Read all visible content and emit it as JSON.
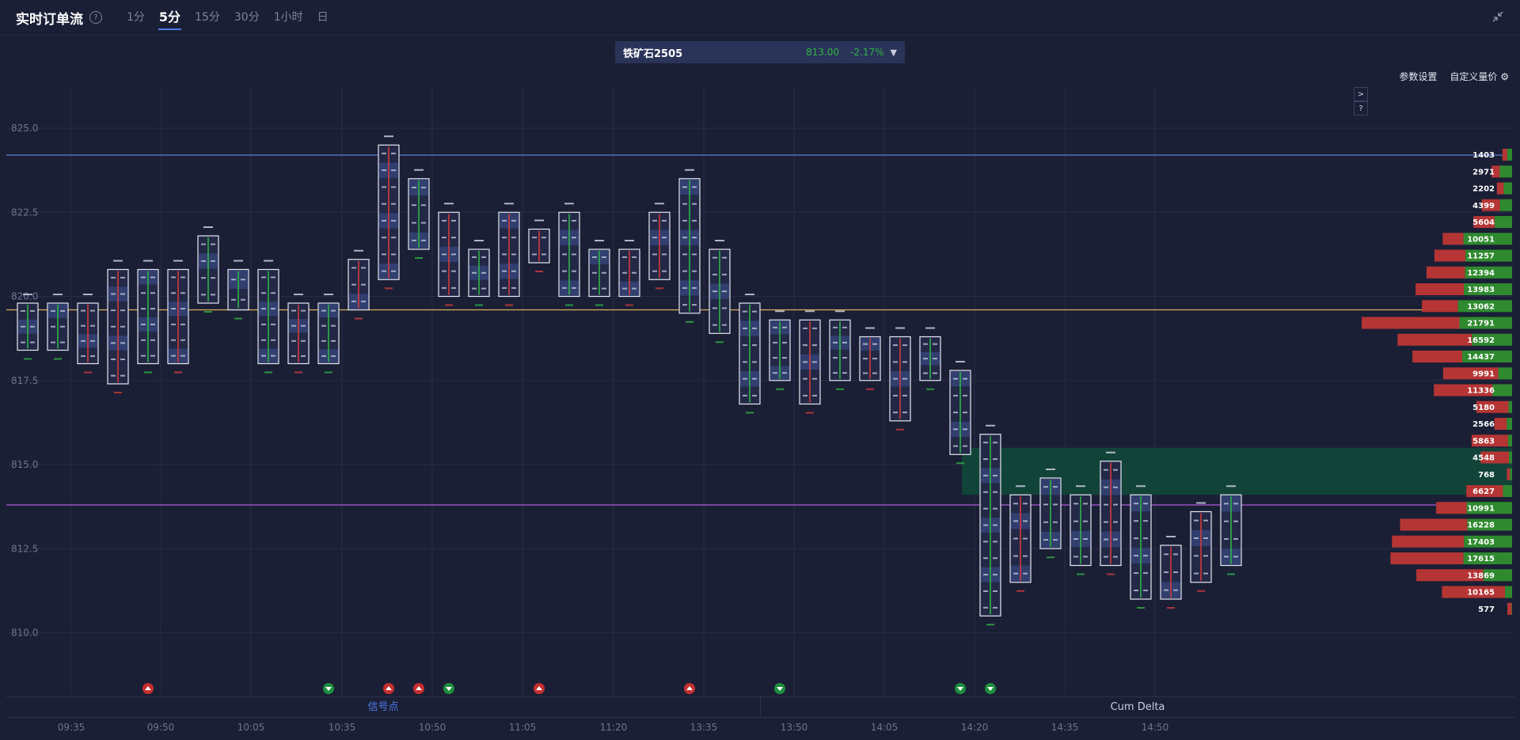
{
  "header": {
    "title": "实时订单流",
    "help_icon": "help-circle-icon",
    "tabs": [
      {
        "label": "1分",
        "active": false
      },
      {
        "label": "5分",
        "active": true
      },
      {
        "label": "15分",
        "active": false
      },
      {
        "label": "30分",
        "active": false
      },
      {
        "label": "1小时",
        "active": false
      },
      {
        "label": "日",
        "active": false
      }
    ],
    "collapse_icon": "collapse-arrows-icon"
  },
  "symbol": {
    "name": "铁矿石2505",
    "price": "813.00",
    "change": "-2.17%",
    "caret_icon": "chevron-down-icon"
  },
  "toolbar": {
    "params_label": "参数设置",
    "custom_label": "自定义量价",
    "custom_icon": "gear-icon",
    "side_buttons": [
      ">",
      "?"
    ]
  },
  "bottom_tabs": [
    {
      "label": "信号点",
      "active": true
    },
    {
      "label": "Cum Delta",
      "active": false
    }
  ],
  "colors": {
    "background": "#1b1f35",
    "buy": "#2f8a2f",
    "sell": "#b53535",
    "highlight_zone": "#0f4a3a",
    "line_blue": "#5b7fd6",
    "line_yellow": "#d9b15a",
    "line_purple": "#b15ad9"
  },
  "chart_data": {
    "type": "footprint",
    "y_ticks": [
      "825.0",
      "822.5",
      "820.0",
      "817.5",
      "815.0",
      "812.5",
      "810.0"
    ],
    "ylim": [
      808.4,
      826.0
    ],
    "x_ticks": [
      "09:35",
      "09:50",
      "10:05",
      "10:35",
      "10:50",
      "11:05",
      "11:20",
      "13:35",
      "13:50",
      "14:05",
      "14:20",
      "14:35",
      "14:50"
    ],
    "horizontal_lines": [
      {
        "price": 824.2,
        "color": "#5b7fd6"
      },
      {
        "price": 819.6,
        "color": "#d9b15a"
      },
      {
        "price": 813.8,
        "color": "#b15ad9"
      }
    ],
    "highlight_zone": [
      814.1,
      815.5
    ],
    "bars": [
      {
        "high": 819.8,
        "low": 818.4,
        "dir": 1
      },
      {
        "high": 819.8,
        "low": 818.4,
        "dir": 1
      },
      {
        "high": 819.8,
        "low": 818.0,
        "dir": -1
      },
      {
        "high": 820.8,
        "low": 817.4,
        "dir": -1
      },
      {
        "high": 820.8,
        "low": 818.0,
        "dir": 1
      },
      {
        "high": 820.8,
        "low": 818.0,
        "dir": -1
      },
      {
        "high": 821.8,
        "low": 819.8,
        "dir": 1
      },
      {
        "high": 820.8,
        "low": 819.6,
        "dir": 1
      },
      {
        "high": 820.8,
        "low": 818.0,
        "dir": 1
      },
      {
        "high": 819.8,
        "low": 818.0,
        "dir": -1
      },
      {
        "high": 819.8,
        "low": 818.0,
        "dir": 1
      },
      {
        "high": 821.1,
        "low": 819.6,
        "dir": -1
      },
      {
        "high": 824.5,
        "low": 820.5,
        "dir": -1
      },
      {
        "high": 823.5,
        "low": 821.4,
        "dir": 1
      },
      {
        "high": 822.5,
        "low": 820.0,
        "dir": -1
      },
      {
        "high": 821.4,
        "low": 820.0,
        "dir": 1
      },
      {
        "high": 822.5,
        "low": 820.0,
        "dir": -1
      },
      {
        "high": 822.0,
        "low": 821.0,
        "dir": -1
      },
      {
        "high": 822.5,
        "low": 820.0,
        "dir": 1
      },
      {
        "high": 821.4,
        "low": 820.0,
        "dir": 1
      },
      {
        "high": 821.4,
        "low": 820.0,
        "dir": -1
      },
      {
        "high": 822.5,
        "low": 820.5,
        "dir": -1
      },
      {
        "high": 823.5,
        "low": 819.5,
        "dir": 1
      },
      {
        "high": 821.4,
        "low": 818.9,
        "dir": 1
      },
      {
        "high": 819.8,
        "low": 816.8,
        "dir": 1
      },
      {
        "high": 819.3,
        "low": 817.5,
        "dir": 1
      },
      {
        "high": 819.3,
        "low": 816.8,
        "dir": -1
      },
      {
        "high": 819.3,
        "low": 817.5,
        "dir": 1
      },
      {
        "high": 818.8,
        "low": 817.5,
        "dir": -1
      },
      {
        "high": 818.8,
        "low": 816.3,
        "dir": -1
      },
      {
        "high": 818.8,
        "low": 817.5,
        "dir": 1
      },
      {
        "high": 817.8,
        "low": 815.3,
        "dir": 1
      },
      {
        "high": 815.9,
        "low": 810.5,
        "dir": 1
      },
      {
        "high": 814.1,
        "low": 811.5,
        "dir": -1
      },
      {
        "high": 814.6,
        "low": 812.5,
        "dir": 1
      },
      {
        "high": 814.1,
        "low": 812.0,
        "dir": 1
      },
      {
        "high": 815.1,
        "low": 812.0,
        "dir": -1
      },
      {
        "high": 814.1,
        "low": 811.0,
        "dir": 1
      },
      {
        "high": 812.6,
        "low": 811.0,
        "dir": -1
      },
      {
        "high": 813.6,
        "low": 811.5,
        "dir": -1
      },
      {
        "high": 814.1,
        "low": 812.0,
        "dir": 1
      }
    ],
    "signals": [
      {
        "bar": 4,
        "type": "sell"
      },
      {
        "bar": 10,
        "type": "buy"
      },
      {
        "bar": 12,
        "type": "sell"
      },
      {
        "bar": 13,
        "type": "sell"
      },
      {
        "bar": 14,
        "type": "buy"
      },
      {
        "bar": 17,
        "type": "sell"
      },
      {
        "bar": 22,
        "type": "sell"
      },
      {
        "bar": 25,
        "type": "buy"
      },
      {
        "bar": 31,
        "type": "buy"
      },
      {
        "bar": 32,
        "type": "buy"
      }
    ],
    "volume_profile": [
      {
        "price": 824.2,
        "total": "1403",
        "buy": 0.5
      },
      {
        "price": 823.7,
        "total": "2971",
        "buy": 0.6
      },
      {
        "price": 823.2,
        "total": "2202",
        "buy": 0.55
      },
      {
        "price": 822.7,
        "total": "4399",
        "buy": 0.4
      },
      {
        "price": 822.2,
        "total": "5604",
        "buy": 0.45
      },
      {
        "price": 821.7,
        "total": "10051",
        "buy": 0.7
      },
      {
        "price": 821.2,
        "total": "11257",
        "buy": 0.6
      },
      {
        "price": 820.7,
        "total": "12394",
        "buy": 0.55
      },
      {
        "price": 820.2,
        "total": "13983",
        "buy": 0.5
      },
      {
        "price": 819.7,
        "total": "13062",
        "buy": 0.6
      },
      {
        "price": 819.2,
        "total": "21791",
        "buy": 0.35
      },
      {
        "price": 818.7,
        "total": "16592",
        "buy": 0.35
      },
      {
        "price": 818.2,
        "total": "14437",
        "buy": 0.5
      },
      {
        "price": 817.7,
        "total": "9991",
        "buy": 0.2
      },
      {
        "price": 817.2,
        "total": "11336",
        "buy": 0.25
      },
      {
        "price": 816.7,
        "total": "5180",
        "buy": 0.1
      },
      {
        "price": 816.2,
        "total": "2566",
        "buy": 0.3
      },
      {
        "price": 815.7,
        "total": "5863",
        "buy": 0.1
      },
      {
        "price": 815.2,
        "total": "4548",
        "buy": 0.1
      },
      {
        "price": 814.7,
        "total": "768",
        "buy": 0.4
      },
      {
        "price": 814.2,
        "total": "6627",
        "buy": 0.2
      },
      {
        "price": 813.7,
        "total": "10991",
        "buy": 0.6
      },
      {
        "price": 813.2,
        "total": "16228",
        "buy": 0.4
      },
      {
        "price": 812.7,
        "total": "17403",
        "buy": 0.4
      },
      {
        "price": 812.2,
        "total": "17615",
        "buy": 0.4
      },
      {
        "price": 811.7,
        "total": "13869",
        "buy": 0.3
      },
      {
        "price": 811.2,
        "total": "10165",
        "buy": 0.1
      },
      {
        "price": 810.7,
        "total": "577",
        "buy": 0.1
      }
    ]
  }
}
